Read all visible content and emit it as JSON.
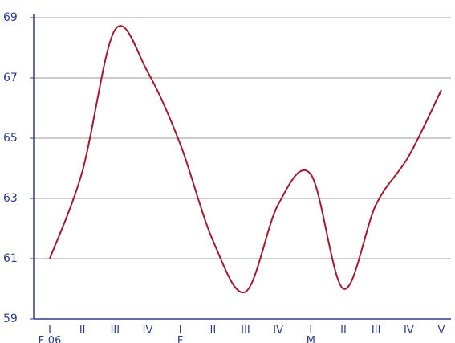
{
  "chart_data": {
    "type": "line",
    "title": "",
    "xlabel": "",
    "ylabel": "",
    "ylim": [
      59,
      69
    ],
    "yticks": [
      "59",
      "61",
      "63",
      "65",
      "67",
      "69"
    ],
    "grid": "horizontal",
    "legend": "none",
    "categories": [
      "I",
      "II",
      "III",
      "IV",
      "I",
      "II",
      "III",
      "IV",
      "I",
      "II",
      "III",
      "IV",
      "V"
    ],
    "period_labels": [
      {
        "at": 0,
        "label": "F-06"
      },
      {
        "at": 4,
        "label": "F"
      },
      {
        "at": 8,
        "label": "M"
      }
    ],
    "series": [
      {
        "color": "#a6192e",
        "values": [
          61.0,
          63.9,
          68.6,
          67.2,
          64.8,
          61.6,
          59.9,
          62.8,
          63.8,
          60.0,
          62.8,
          64.4,
          66.6
        ]
      }
    ],
    "colors": {
      "axis": "#2e3d8c",
      "grid": "#999999",
      "line": "#a6192e"
    }
  }
}
